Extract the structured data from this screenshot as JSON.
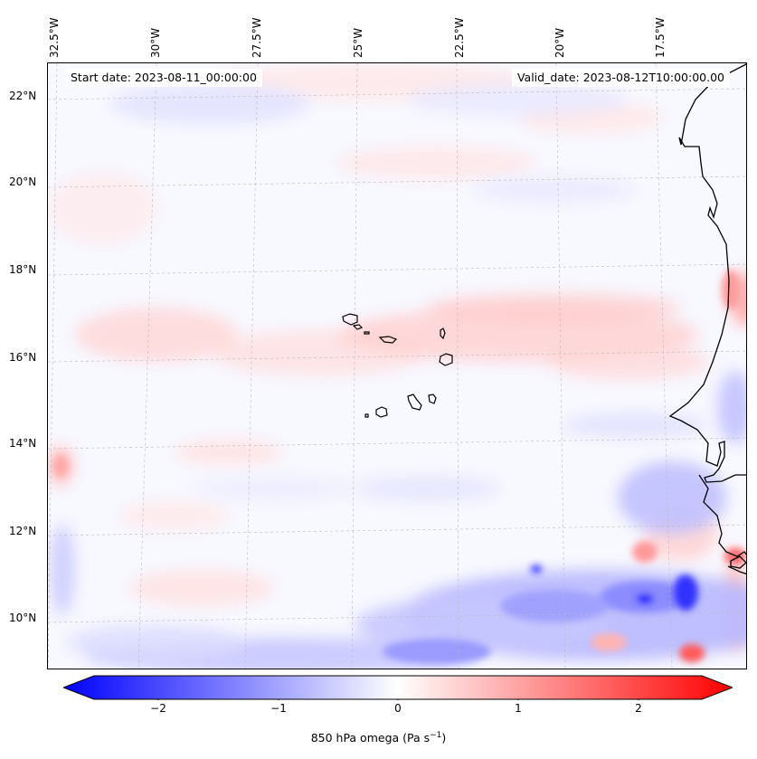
{
  "header": {
    "start_date": "Start date: 2023-08-11_00:00:00",
    "valid_date": "Valid_date: 2023-08-12T10:00:00.00"
  },
  "longitude_labels": [
    "32.5°W",
    "30°W",
    "27.5°W",
    "25°W",
    "22.5°W",
    "20°W",
    "17.5°W"
  ],
  "latitude_labels": [
    "22°N",
    "20°N",
    "18°N",
    "16°N",
    "14°N",
    "12°N",
    "10°N"
  ],
  "colorbar": {
    "label": "850 hPa omega (Pa s",
    "label_sup": "−1",
    "label_end": ")",
    "ticks": [
      "−2",
      "−1",
      "0",
      "1",
      "2"
    ],
    "min_color": "#0000ff",
    "mid_color": "#ffffff",
    "max_color": "#ff0000"
  },
  "map": {
    "field": "850 hPa omega",
    "colormap": "bwr",
    "coastline_color": "#000000",
    "gridline_style": "dashed"
  }
}
